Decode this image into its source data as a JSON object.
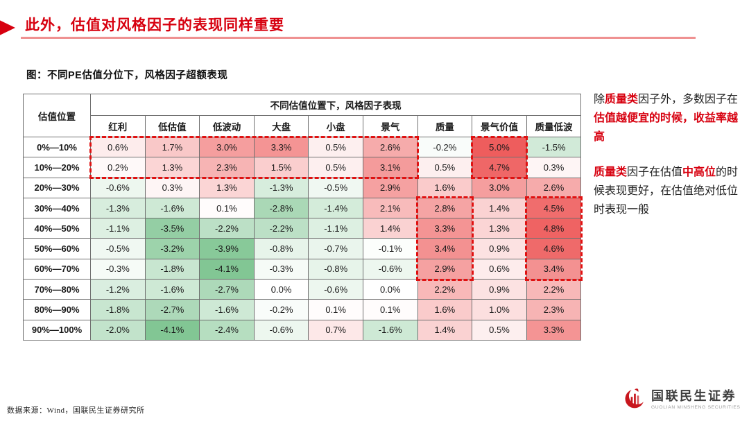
{
  "slide": {
    "title": "此外，估值对风格因子的表现同样重要",
    "figure_caption": "图：不同PE估值分位下，风格因子超额表现",
    "source_note": "数据来源：Wind，国联民生证券研究所"
  },
  "logo": {
    "name_cn": "国联民生证券",
    "name_en": "GUOLIAN MINSHENG SECURITIES"
  },
  "colors": {
    "accent_red": "#d7000f",
    "title_underline_pink": "#ef9191",
    "highlight_dash_red": "#e01111",
    "heat_positive_max": "#ee5d5d",
    "heat_negative_max": "#82c694",
    "table_border_gray": "#6f6f6f"
  },
  "chart_data": {
    "type": "table",
    "title": "不同估值位置下，风格因子表现",
    "row_header_label": "估值位置",
    "columns": [
      "红利",
      "低估值",
      "低波动",
      "大盘",
      "小盘",
      "景气",
      "质量",
      "景气价值",
      "质量低波"
    ],
    "rows": [
      "0%—10%",
      "10%—20%",
      "20%—30%",
      "30%—40%",
      "40%—50%",
      "50%—60%",
      "60%—70%",
      "70%—80%",
      "80%—90%",
      "90%—100%"
    ],
    "values_pct": [
      [
        0.6,
        1.7,
        3.0,
        3.3,
        0.5,
        2.6,
        -0.2,
        5.0,
        -1.5
      ],
      [
        0.2,
        1.3,
        2.3,
        1.5,
        0.5,
        3.1,
        0.5,
        4.7,
        0.3
      ],
      [
        -0.6,
        0.3,
        1.3,
        -1.3,
        -0.5,
        2.9,
        1.6,
        3.0,
        2.6
      ],
      [
        -1.3,
        -1.6,
        0.1,
        -2.8,
        -1.4,
        2.1,
        2.8,
        1.4,
        4.5
      ],
      [
        -1.1,
        -3.5,
        -2.2,
        -2.2,
        -1.1,
        1.4,
        3.3,
        1.3,
        4.8
      ],
      [
        -0.5,
        -3.2,
        -3.9,
        -0.8,
        -0.7,
        -0.1,
        3.4,
        0.9,
        4.6
      ],
      [
        -0.3,
        -1.8,
        -4.1,
        -0.3,
        -0.8,
        -0.6,
        2.9,
        0.6,
        3.4
      ],
      [
        -1.2,
        -1.6,
        -2.7,
        0.0,
        -0.6,
        0.0,
        2.2,
        0.9,
        2.2
      ],
      [
        -1.8,
        -2.7,
        -1.6,
        -0.2,
        0.1,
        0.1,
        1.6,
        1.0,
        2.3
      ],
      [
        -2.0,
        -4.1,
        -2.4,
        -0.6,
        0.7,
        -1.6,
        1.4,
        0.5,
        3.3
      ]
    ],
    "heat_scale": {
      "positive_max_pct": 5.0,
      "negative_max_pct": -4.1
    },
    "layout_hints": {
      "heatmap": true,
      "unit": "%"
    }
  },
  "annotations": {
    "paragraph1": [
      {
        "text": "除",
        "red": false
      },
      {
        "text": "质量类",
        "red": true
      },
      {
        "text": "因子外，多数因子在",
        "red": false
      },
      {
        "text": "估值越便宜的时候，收益率越高",
        "red": true
      }
    ],
    "paragraph2": [
      {
        "text": "质量类",
        "red": true
      },
      {
        "text": "因子在估值",
        "red": false
      },
      {
        "text": "中高位",
        "red": true
      },
      {
        "text": "的时候表现更好，在估值绝对低位时表现一般",
        "red": false
      }
    ]
  },
  "highlights": [
    {
      "name": "low-valuation-rows-box",
      "row_start": 0,
      "row_end": 1,
      "col_start": 0,
      "col_end": 5
    },
    {
      "name": "jingqi-jiazhi-top-box",
      "row_start": 0,
      "row_end": 1,
      "col_start": 7,
      "col_end": 7
    },
    {
      "name": "zhiliang-mid-box",
      "row_start": 3,
      "row_end": 6,
      "col_start": 6,
      "col_end": 6
    },
    {
      "name": "zhiliang-dibo-mid-box",
      "row_start": 3,
      "row_end": 6,
      "col_start": 8,
      "col_end": 8
    }
  ]
}
